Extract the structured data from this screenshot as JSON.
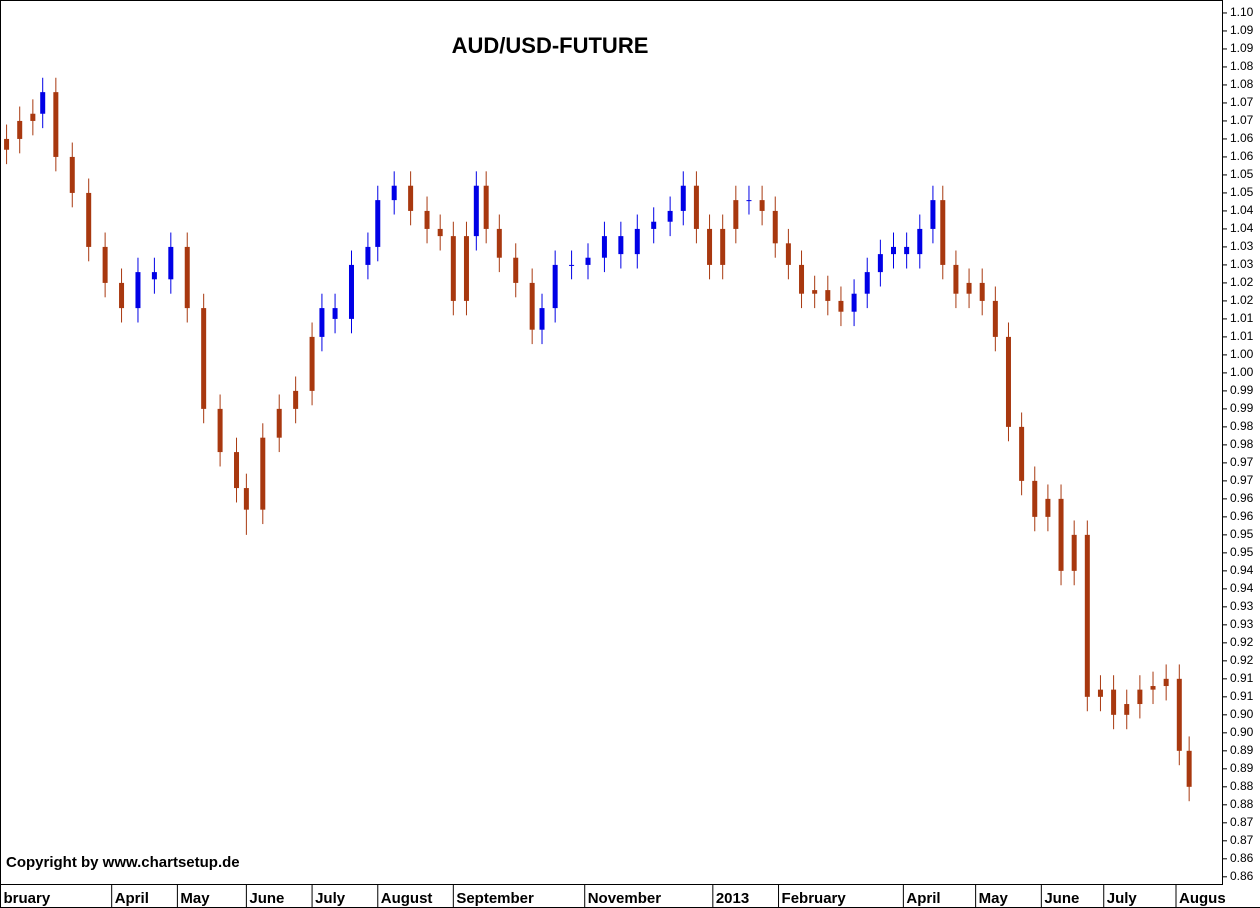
{
  "chart_data": {
    "type": "candlestick",
    "title": "AUD/USD-FUTURE",
    "annotations": [
      "Copyright by www.chartsetup.de"
    ],
    "x": [
      0,
      4,
      8,
      11,
      15,
      20,
      25,
      30,
      35,
      40,
      45,
      50,
      55,
      60,
      65,
      70,
      73,
      78,
      83,
      88,
      93,
      96,
      100,
      105,
      110,
      113,
      118,
      123,
      128,
      132,
      136,
      140,
      143,
      146,
      150,
      155,
      160,
      163,
      167,
      172,
      177,
      182,
      187,
      192,
      197,
      202,
      206,
      210,
      214,
      218,
      222,
      226,
      230,
      234,
      238,
      242,
      246,
      250,
      254,
      258,
      262,
      266,
      270,
      274,
      278,
      282,
      285,
      289,
      293,
      297,
      301,
      305,
      309,
      313,
      317,
      321,
      325,
      329,
      333,
      337,
      341,
      345,
      349,
      353,
      357,
      360
    ],
    "open": [
      1.062,
      1.065,
      1.07,
      1.072,
      1.078,
      1.06,
      1.05,
      1.035,
      1.025,
      1.018,
      1.028,
      1.026,
      1.035,
      1.018,
      0.99,
      0.978,
      0.968,
      0.962,
      0.982,
      0.99,
      0.995,
      1.01,
      1.018,
      1.015,
      1.03,
      1.035,
      1.048,
      1.052,
      1.045,
      1.04,
      1.038,
      1.02,
      1.038,
      1.052,
      1.04,
      1.032,
      1.025,
      1.012,
      1.018,
      1.03,
      1.03,
      1.032,
      1.038,
      1.033,
      1.04,
      1.042,
      1.045,
      1.052,
      1.04,
      1.03,
      1.04,
      1.048,
      1.048,
      1.045,
      1.036,
      1.03,
      1.022,
      1.023,
      1.02,
      1.017,
      1.022,
      1.028,
      1.033,
      1.035,
      1.033,
      1.04,
      1.048,
      1.03,
      1.022,
      1.025,
      1.02,
      1.01,
      0.985,
      0.97,
      0.96,
      0.965,
      0.945,
      0.955,
      0.91,
      0.912,
      0.905,
      0.908,
      0.912,
      0.913,
      0.915,
      0.895
    ],
    "high": [
      1.069,
      1.074,
      1.076,
      1.082,
      1.082,
      1.064,
      1.054,
      1.039,
      1.029,
      1.032,
      1.032,
      1.039,
      1.039,
      1.022,
      0.994,
      0.982,
      0.972,
      0.986,
      0.994,
      0.999,
      1.014,
      1.022,
      1.022,
      1.034,
      1.039,
      1.052,
      1.056,
      1.056,
      1.049,
      1.044,
      1.042,
      1.042,
      1.056,
      1.056,
      1.044,
      1.036,
      1.029,
      1.022,
      1.034,
      1.034,
      1.036,
      1.042,
      1.042,
      1.044,
      1.046,
      1.049,
      1.056,
      1.056,
      1.044,
      1.044,
      1.052,
      1.052,
      1.052,
      1.049,
      1.04,
      1.034,
      1.027,
      1.027,
      1.024,
      1.026,
      1.032,
      1.037,
      1.039,
      1.039,
      1.044,
      1.052,
      1.052,
      1.034,
      1.029,
      1.029,
      1.024,
      1.014,
      0.989,
      0.974,
      0.969,
      0.969,
      0.959,
      0.959,
      0.916,
      0.916,
      0.912,
      0.916,
      0.917,
      0.919,
      0.919,
      0.899
    ],
    "low": [
      1.058,
      1.061,
      1.066,
      1.068,
      1.056,
      1.046,
      1.031,
      1.021,
      1.014,
      1.014,
      1.022,
      1.022,
      1.014,
      0.986,
      0.974,
      0.964,
      0.955,
      0.958,
      0.978,
      0.986,
      0.991,
      1.006,
      1.011,
      1.011,
      1.026,
      1.031,
      1.044,
      1.041,
      1.036,
      1.034,
      1.016,
      1.016,
      1.034,
      1.036,
      1.028,
      1.021,
      1.008,
      1.008,
      1.014,
      1.026,
      1.026,
      1.028,
      1.029,
      1.029,
      1.036,
      1.038,
      1.041,
      1.036,
      1.026,
      1.026,
      1.036,
      1.044,
      1.041,
      1.032,
      1.026,
      1.018,
      1.018,
      1.016,
      1.013,
      1.013,
      1.018,
      1.024,
      1.029,
      1.029,
      1.029,
      1.036,
      1.026,
      1.018,
      1.018,
      1.016,
      1.006,
      0.981,
      0.966,
      0.956,
      0.956,
      0.941,
      0.941,
      0.906,
      0.906,
      0.901,
      0.901,
      0.904,
      0.908,
      0.909,
      0.891,
      0.881
    ],
    "close": [
      1.065,
      1.07,
      1.072,
      1.078,
      1.06,
      1.05,
      1.035,
      1.025,
      1.018,
      1.028,
      1.026,
      1.035,
      1.018,
      0.99,
      0.978,
      0.968,
      0.962,
      0.982,
      0.99,
      0.995,
      1.01,
      1.018,
      1.015,
      1.03,
      1.035,
      1.048,
      1.052,
      1.045,
      1.04,
      1.038,
      1.02,
      1.038,
      1.052,
      1.04,
      1.032,
      1.025,
      1.012,
      1.018,
      1.03,
      1.03,
      1.032,
      1.038,
      1.033,
      1.04,
      1.042,
      1.045,
      1.052,
      1.04,
      1.03,
      1.04,
      1.048,
      1.048,
      1.045,
      1.036,
      1.03,
      1.022,
      1.023,
      1.02,
      1.017,
      1.022,
      1.028,
      1.033,
      1.035,
      1.033,
      1.04,
      1.048,
      1.03,
      1.022,
      1.025,
      1.02,
      1.01,
      0.985,
      0.97,
      0.96,
      0.965,
      0.945,
      0.955,
      0.91,
      0.912,
      0.905,
      0.908,
      0.912,
      0.913,
      0.915,
      0.895,
      0.885
    ],
    "candle_colors": [
      "#a8380f",
      "#a8380f",
      "#a8380f",
      "#0000e6",
      "#a8380f",
      "#a8380f",
      "#a8380f",
      "#a8380f",
      "#a8380f",
      "#0000e6",
      "#0000e6",
      "#0000e6",
      "#a8380f",
      "#a8380f",
      "#a8380f",
      "#a8380f",
      "#a8380f",
      "#a8380f",
      "#a8380f",
      "#a8380f",
      "#a8380f",
      "#0000e6",
      "#0000e6",
      "#0000e6",
      "#0000e6",
      "#0000e6",
      "#0000e6",
      "#a8380f",
      "#a8380f",
      "#a8380f",
      "#a8380f",
      "#a8380f",
      "#0000e6",
      "#a8380f",
      "#a8380f",
      "#a8380f",
      "#a8380f",
      "#0000e6",
      "#0000e6",
      "#0000e6",
      "#0000e6",
      "#0000e6",
      "#0000e6",
      "#0000e6",
      "#0000e6",
      "#0000e6",
      "#0000e6",
      "#a8380f",
      "#a8380f",
      "#a8380f",
      "#a8380f",
      "#0000e6",
      "#a8380f",
      "#a8380f",
      "#a8380f",
      "#a8380f",
      "#a8380f",
      "#a8380f",
      "#a8380f",
      "#0000e6",
      "#0000e6",
      "#0000e6",
      "#0000e6",
      "#0000e6",
      "#0000e6",
      "#0000e6",
      "#a8380f",
      "#a8380f",
      "#a8380f",
      "#a8380f",
      "#a8380f",
      "#a8380f",
      "#a8380f",
      "#a8380f",
      "#a8380f",
      "#a8380f",
      "#a8380f",
      "#a8380f",
      "#a8380f",
      "#a8380f",
      "#a8380f",
      "#a8380f",
      "#a8380f",
      "#a8380f",
      "#a8380f",
      "#a8380f"
    ],
    "xlim": [
      -2,
      370
    ],
    "xticks": [
      {
        "value": -2,
        "label": "bruary"
      },
      {
        "value": 32,
        "label": "April"
      },
      {
        "value": 52,
        "label": "May"
      },
      {
        "value": 73,
        "label": "June"
      },
      {
        "value": 93,
        "label": "July"
      },
      {
        "value": 113,
        "label": "August"
      },
      {
        "value": 136,
        "label": "September"
      },
      {
        "value": 176,
        "label": "November"
      },
      {
        "value": 215,
        "label": "2013"
      },
      {
        "value": 235,
        "label": "February"
      },
      {
        "value": 273,
        "label": "April"
      },
      {
        "value": 295,
        "label": "May"
      },
      {
        "value": 315,
        "label": "June"
      },
      {
        "value": 334,
        "label": "July"
      },
      {
        "value": 356,
        "label": "Augus"
      }
    ],
    "ylim": [
      0.858,
      1.1036
    ],
    "yticks": [
      {
        "value": 1.1,
        "label": "1.10"
      },
      {
        "value": 1.095,
        "label": "1.09"
      },
      1.09,
      {
        "value": 1.085,
        "label": "1.08"
      },
      1.08,
      {
        "value": 1.075,
        "label": "1.07"
      },
      1.07,
      {
        "value": 1.065,
        "label": "1.06"
      },
      1.06,
      {
        "value": 1.055,
        "label": "1.05"
      },
      1.05,
      {
        "value": 1.045,
        "label": "1.04"
      },
      1.04,
      {
        "value": 1.035,
        "label": "1.03"
      },
      1.03,
      {
        "value": 1.025,
        "label": "1.02"
      },
      1.02,
      {
        "value": 1.015,
        "label": "1.01"
      },
      1.01,
      {
        "value": 1.005,
        "label": "1.00"
      },
      {
        "value": 1,
        "label": "1.00"
      },
      {
        "value": 0.995,
        "label": "0.99"
      },
      0.99,
      {
        "value": 0.985,
        "label": "0.98"
      },
      0.98,
      {
        "value": 0.975,
        "label": "0.97"
      },
      0.97,
      {
        "value": 0.965,
        "label": "0.96"
      },
      0.96,
      {
        "value": 0.955,
        "label": "0.95"
      },
      0.95,
      {
        "value": 0.945,
        "label": "0.94"
      },
      0.94,
      {
        "value": 0.935,
        "label": "0.93"
      },
      0.93,
      {
        "value": 0.925,
        "label": "0.92"
      },
      0.92,
      {
        "value": 0.915,
        "label": "0.91"
      },
      0.91,
      {
        "value": 0.905,
        "label": "0.90"
      },
      {
        "value": 0.9,
        "label": "0.90"
      },
      {
        "value": 0.895,
        "label": "0.89"
      },
      0.89,
      {
        "value": 0.885,
        "label": "0.88"
      },
      0.88,
      {
        "value": 0.875,
        "label": "0.87"
      },
      0.87,
      {
        "value": 0.865,
        "label": "0.86"
      },
      0.86
    ]
  }
}
